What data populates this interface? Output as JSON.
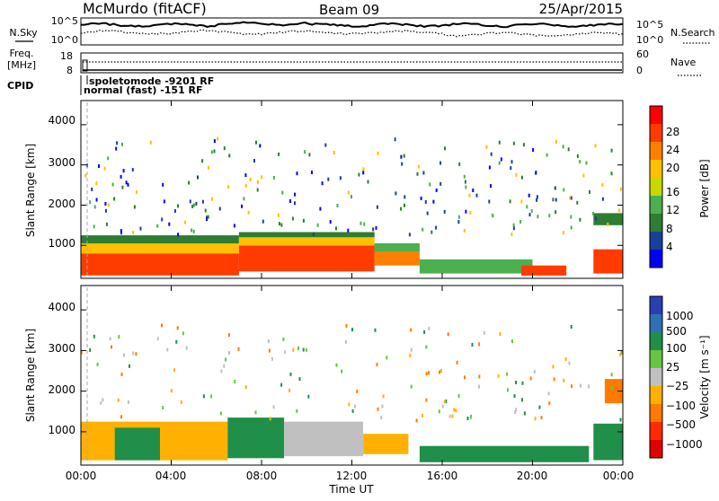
{
  "header": {
    "station": "McMurdo (fitACF)",
    "beam": "Beam 09",
    "date": "25/Apr/2015"
  },
  "noise_panel": {
    "left_label": "N.Sky",
    "right_label": "N.Search",
    "left_ticks": [
      "10^5",
      "10^0"
    ],
    "right_ticks": [
      "10^5",
      "10^0"
    ]
  },
  "freq_panel": {
    "left_label_1": "Freq.",
    "left_label_2": "[MHz]",
    "right_label": "Nave",
    "left_ticks": [
      "18",
      "8"
    ],
    "right_ticks": [
      "60",
      "0"
    ]
  },
  "cpid": {
    "label": "CPID",
    "mode_1": "spoletomode -9201 RF",
    "mode_2": "normal (fast) -151 RF"
  },
  "panels": {
    "y_label": "Slant Range [km]",
    "y_ticks": [
      "4000",
      "3000",
      "2000",
      "1000"
    ],
    "x_ticks": [
      "00:00",
      "04:00",
      "08:00",
      "12:00",
      "16:00",
      "20:00",
      "00:00"
    ],
    "x_label": "Time UT"
  },
  "power_bar": {
    "title": "Power [dB]",
    "ticks": [
      "28",
      "24",
      "20",
      "16",
      "12",
      "8",
      "4"
    ],
    "colors": [
      "#ff0000",
      "#ff3b00",
      "#ff8000",
      "#ffc000",
      "#c8d800",
      "#4caf50",
      "#2e7d32",
      "#1a3f9a",
      "#0000ff"
    ]
  },
  "velocity_bar": {
    "title": "Velocity [m s⁻¹]",
    "ticks": [
      "1000",
      "500",
      "100",
      "25",
      "−25",
      "−100",
      "−500",
      "−1000"
    ],
    "colors": [
      "#2b3fb0",
      "#2f6fb8",
      "#1f8f4a",
      "#66c640",
      "#c0c0c0",
      "#ffb000",
      "#ff7a00",
      "#ff2a00",
      "#e00000"
    ]
  },
  "chart_data": {
    "type": "heatmap",
    "title": "McMurdo (fitACF) Beam 09 25/Apr/2015",
    "xlabel": "Time UT",
    "ylabel": "Slant Range [km]",
    "xlim": [
      "00:00",
      "24:00"
    ],
    "ylim": [
      180,
      4600
    ],
    "x_tick_hours": [
      0,
      4,
      8,
      12,
      16,
      20,
      24
    ],
    "y_tick_values": [
      1000,
      2000,
      3000,
      4000
    ],
    "power_scale": {
      "unit": "dB",
      "range": [
        0,
        30
      ],
      "ticks": [
        4,
        8,
        12,
        16,
        20,
        24,
        28
      ]
    },
    "velocity_scale": {
      "unit": "m s-1",
      "ticks": [
        -1000,
        -500,
        -100,
        -25,
        25,
        100,
        500,
        1000
      ]
    },
    "noise_log_range": [
      0,
      5
    ],
    "freq_range_mhz": [
      8,
      18
    ],
    "nave_range": [
      0,
      60
    ],
    "power_regions": [
      {
        "t": [
          0.0,
          7.0
        ],
        "r": [
          250,
          800
        ],
        "dB": 28
      },
      {
        "t": [
          0.0,
          7.0
        ],
        "r": [
          800,
          1050
        ],
        "dB": 18
      },
      {
        "t": [
          0.0,
          7.0
        ],
        "r": [
          1050,
          1250
        ],
        "dB": 9
      },
      {
        "t": [
          7.0,
          13.0
        ],
        "r": [
          350,
          1000
        ],
        "dB": 28
      },
      {
        "t": [
          7.0,
          13.0
        ],
        "r": [
          1000,
          1200
        ],
        "dB": 18
      },
      {
        "t": [
          7.0,
          13.0
        ],
        "r": [
          1200,
          1330
        ],
        "dB": 9
      },
      {
        "t": [
          13.0,
          15.0
        ],
        "r": [
          500,
          850
        ],
        "dB": 24
      },
      {
        "t": [
          13.0,
          15.0
        ],
        "r": [
          850,
          1050
        ],
        "dB": 11
      },
      {
        "t": [
          15.0,
          20.0
        ],
        "r": [
          300,
          650
        ],
        "dB": 10
      },
      {
        "t": [
          19.5,
          21.5
        ],
        "r": [
          250,
          500
        ],
        "dB": 26
      },
      {
        "t": [
          22.7,
          24.0
        ],
        "r": [
          300,
          900
        ],
        "dB": 27
      },
      {
        "t": [
          22.7,
          24.0
        ],
        "r": [
          1500,
          1800
        ],
        "dB": 8
      }
    ],
    "velocity_regions": [
      {
        "t": [
          0.0,
          6.5
        ],
        "r": [
          300,
          1250
        ],
        "v": -100
      },
      {
        "t": [
          1.5,
          3.5
        ],
        "r": [
          300,
          1100
        ],
        "v": 100
      },
      {
        "t": [
          6.5,
          9.0
        ],
        "r": [
          350,
          1350
        ],
        "v": 250
      },
      {
        "t": [
          9.0,
          12.5
        ],
        "r": [
          400,
          1250
        ],
        "v": 0
      },
      {
        "t": [
          12.5,
          14.5
        ],
        "r": [
          450,
          950
        ],
        "v": -100
      },
      {
        "t": [
          15.0,
          22.5
        ],
        "r": [
          250,
          650
        ],
        "v": 100
      },
      {
        "t": [
          22.7,
          24.0
        ],
        "r": [
          300,
          1200
        ],
        "v": 100
      },
      {
        "t": [
          23.2,
          24.0
        ],
        "r": [
          1700,
          2300
        ],
        "v": -200
      }
    ]
  }
}
